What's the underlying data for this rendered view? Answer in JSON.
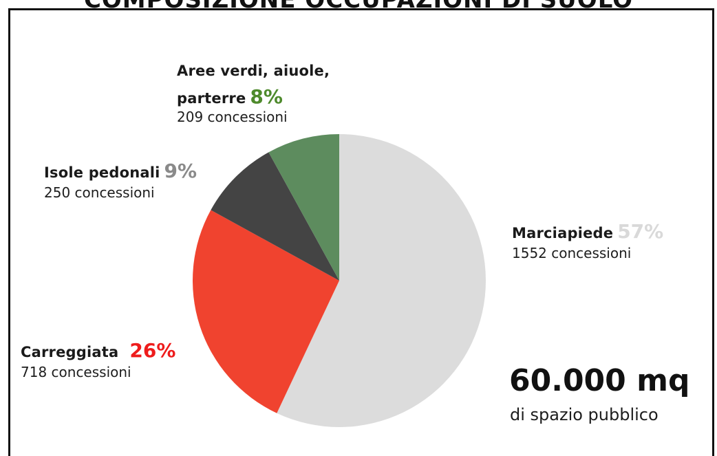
{
  "title": "COMPOSIZIONE OCCUPAZIONI DI SUOLO",
  "chart_data": {
    "type": "pie",
    "title": "COMPOSIZIONE OCCUPAZIONI DI SUOLO",
    "slices": [
      {
        "name": "Marciapiede",
        "label": "Marciapiede",
        "percent": 57,
        "percent_text": "57%",
        "count": 1552,
        "count_text": "1552 concessioni",
        "color": "#dcdcdc",
        "label_color": "#d9d9d9"
      },
      {
        "name": "Carreggiata",
        "label": "Carreggiata",
        "percent": 26,
        "percent_text": "26%",
        "count": 718,
        "count_text": "718 concessioni",
        "color": "#f0432f",
        "label_color": "#ee1c1c"
      },
      {
        "name": "Isole pedonali",
        "label": "Isole pedonali",
        "percent": 9,
        "percent_text": "9%",
        "count": 250,
        "count_text": "250 concessioni",
        "color": "#444444",
        "label_color": "#8a8a8a"
      },
      {
        "name": "Aree verdi, aiuole, parterre",
        "label_line1": "Aree verdi, aiuole,",
        "label_line2": "parterre",
        "percent": 8,
        "percent_text": "8%",
        "count": 209,
        "count_text": "209 concessioni",
        "color": "#5d8c5e",
        "label_color": "#4e8a2c"
      }
    ]
  },
  "total": {
    "value": "60.000 mq",
    "caption": "di spazio pubblico"
  }
}
